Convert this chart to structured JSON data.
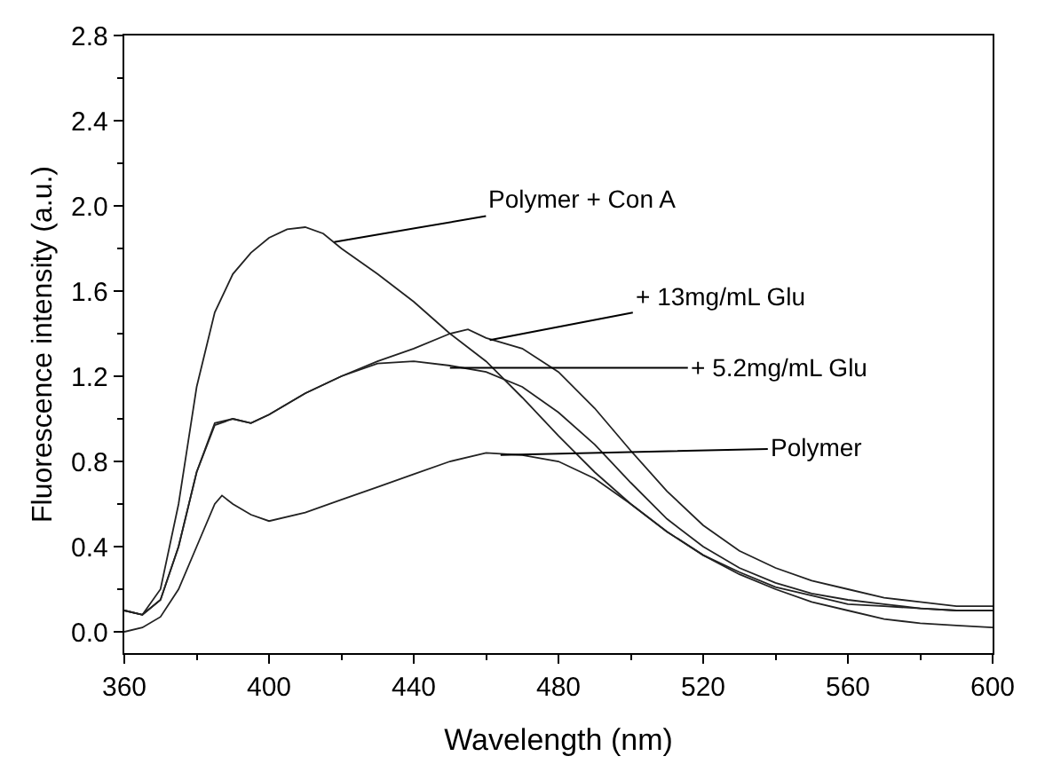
{
  "chart_data": {
    "type": "line",
    "xlabel": "Wavelength (nm)",
    "ylabel": "Fluorescence intensity (a.u.)",
    "xlim": [
      360,
      600
    ],
    "xticks": [
      360,
      400,
      440,
      480,
      520,
      560,
      600
    ],
    "ylim": [
      -0.1,
      2.8
    ],
    "yticks": [
      {
        "value": 0,
        "label": "0.0"
      },
      {
        "value": 0.4,
        "label": "0.4"
      },
      {
        "value": 0.8,
        "label": "0.8"
      },
      {
        "value": 1.2,
        "label": "1.2"
      },
      {
        "value": 1.6,
        "label": "1.6"
      },
      {
        "value": 2.0,
        "label": "2.0"
      },
      {
        "value": 2.4,
        "label": "2.4"
      },
      {
        "value": 2.8,
        "label": "2.8"
      }
    ],
    "marker": "none",
    "line_style": "solid",
    "series": [
      {
        "color": "#222222",
        "x": [
          360,
          365,
          370,
          375,
          380,
          385,
          390,
          395,
          400,
          405,
          410,
          415,
          420,
          430,
          440,
          450,
          460,
          470,
          480,
          490,
          500,
          510,
          520,
          530,
          540,
          550,
          560,
          570,
          580,
          590,
          600
        ],
        "values": [
          0.1,
          0.08,
          0.2,
          0.6,
          1.15,
          1.5,
          1.68,
          1.78,
          1.85,
          1.89,
          1.9,
          1.87,
          1.8,
          1.68,
          1.55,
          1.4,
          1.27,
          1.1,
          0.92,
          0.75,
          0.6,
          0.47,
          0.36,
          0.27,
          0.2,
          0.14,
          0.1,
          0.06,
          0.04,
          0.03,
          0.02
        ]
      },
      {
        "color": "#222222",
        "x": [
          360,
          365,
          370,
          375,
          380,
          385,
          390,
          395,
          400,
          410,
          420,
          430,
          440,
          450,
          455,
          460,
          470,
          480,
          490,
          500,
          510,
          520,
          530,
          540,
          550,
          560,
          570,
          580,
          590,
          600
        ],
        "values": [
          0.1,
          0.08,
          0.15,
          0.4,
          0.75,
          0.98,
          1.0,
          0.98,
          1.02,
          1.12,
          1.2,
          1.27,
          1.33,
          1.4,
          1.42,
          1.38,
          1.33,
          1.22,
          1.05,
          0.85,
          0.66,
          0.5,
          0.38,
          0.3,
          0.24,
          0.2,
          0.16,
          0.14,
          0.12,
          0.12
        ]
      },
      {
        "color": "#222222",
        "x": [
          360,
          365,
          370,
          375,
          380,
          385,
          390,
          395,
          400,
          410,
          420,
          430,
          440,
          450,
          460,
          470,
          480,
          490,
          500,
          510,
          520,
          530,
          540,
          550,
          560,
          570,
          580,
          590,
          600
        ],
        "values": [
          0.1,
          0.08,
          0.15,
          0.4,
          0.75,
          0.97,
          1.0,
          0.98,
          1.02,
          1.12,
          1.2,
          1.26,
          1.27,
          1.25,
          1.22,
          1.15,
          1.03,
          0.88,
          0.7,
          0.53,
          0.4,
          0.3,
          0.23,
          0.18,
          0.15,
          0.13,
          0.11,
          0.1,
          0.1
        ]
      },
      {
        "color": "#222222",
        "x": [
          360,
          365,
          370,
          375,
          380,
          385,
          387,
          390,
          395,
          400,
          410,
          420,
          430,
          440,
          450,
          460,
          470,
          480,
          490,
          500,
          510,
          520,
          530,
          540,
          550,
          560,
          570,
          580,
          590,
          600
        ],
        "values": [
          0.0,
          0.02,
          0.07,
          0.2,
          0.4,
          0.6,
          0.64,
          0.6,
          0.55,
          0.52,
          0.56,
          0.62,
          0.68,
          0.74,
          0.8,
          0.84,
          0.83,
          0.8,
          0.72,
          0.6,
          0.47,
          0.36,
          0.28,
          0.21,
          0.17,
          0.13,
          0.12,
          0.11,
          0.1,
          0.1
        ]
      }
    ],
    "annotations": [
      {
        "text": "Polymer + Con A",
        "x": 418,
        "y": 1.83
      },
      {
        "text": "+ 13mg/mL Glu",
        "x": 461,
        "y": 1.37
      },
      {
        "text": "+ 5.2mg/mL Glu",
        "x": 450,
        "y": 1.24
      },
      {
        "text": "Polymer",
        "x": 464,
        "y": 0.83
      }
    ]
  }
}
